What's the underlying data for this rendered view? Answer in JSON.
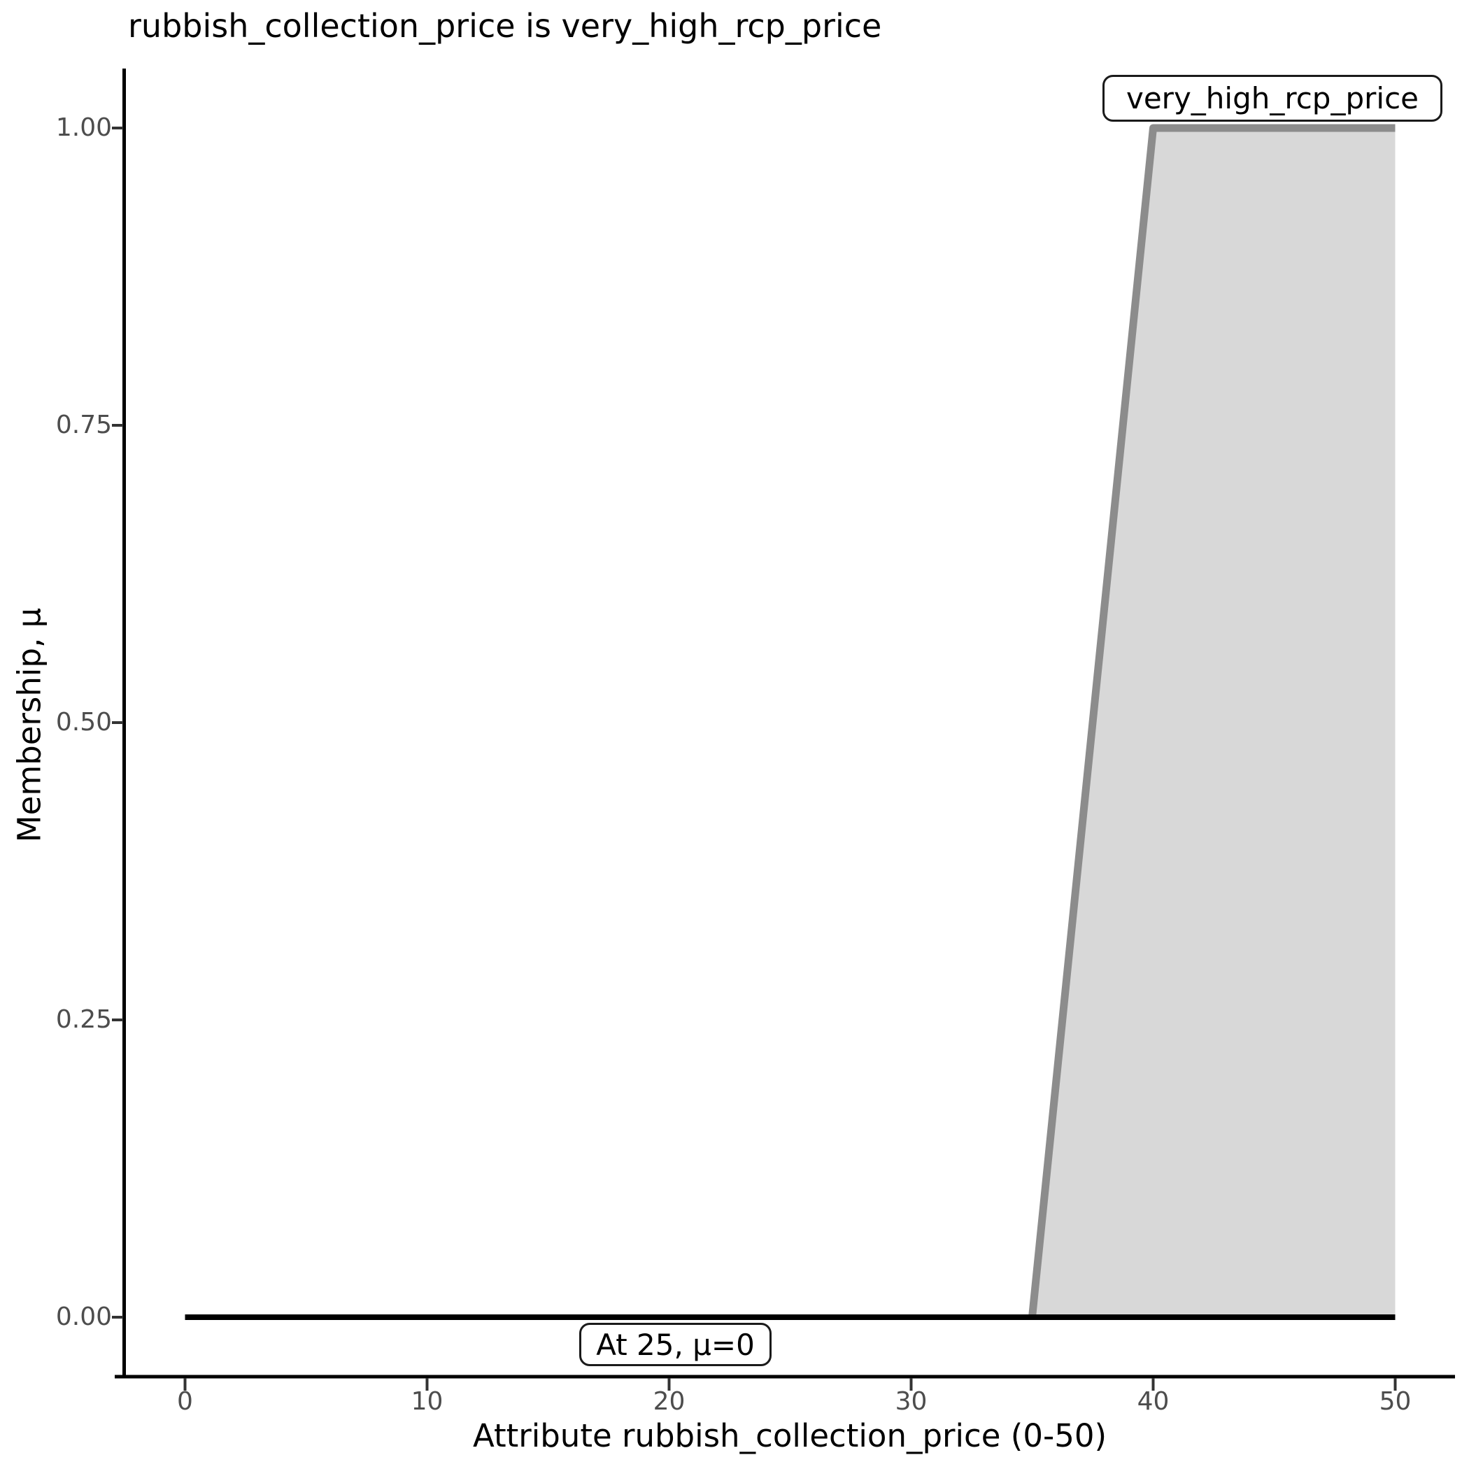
{
  "chart_data": {
    "type": "area",
    "title": "rubbish_collection_price is very_high_rcp_price",
    "xlabel": "Attribute rubbish_collection_price (0-50)",
    "ylabel": "Membership, μ",
    "xlim": [
      0,
      50
    ],
    "ylim": [
      0,
      1
    ],
    "x_ticks": [
      0,
      10,
      20,
      30,
      40,
      50
    ],
    "y_ticks": [
      0.0,
      0.25,
      0.5,
      0.75,
      1.0
    ],
    "y_tick_labels": [
      "0.00",
      "0.25",
      "0.50",
      "0.75",
      "1.00"
    ],
    "grid": "off",
    "series": [
      {
        "name": "very_high_rcp_price",
        "points": [
          [
            35,
            0
          ],
          [
            40,
            1
          ],
          [
            50,
            1
          ]
        ],
        "fill_polygon": [
          [
            35,
            0
          ],
          [
            40,
            1
          ],
          [
            50,
            1
          ],
          [
            50,
            0
          ]
        ],
        "line_color": "#8c8c8c",
        "fill_color": "#d8d8d8"
      }
    ],
    "baseline": {
      "label": "evaluation at x=25 gives μ=0",
      "y": 0,
      "x_from": 0,
      "x_to": 50,
      "color": "#000000"
    },
    "annotations": [
      {
        "text": "very_high_rcp_price"
      },
      {
        "text": "At 25, μ=0"
      }
    ],
    "colors": {
      "axis_line": "#000000",
      "tick_mark": "#333333",
      "tick_label": "#4d4d4d",
      "membership_line": "#8c8c8c",
      "membership_fill": "#d8d8d8",
      "baseline": "#000000",
      "annotation_border": "#1a1a1a",
      "annotation_bg": "#ffffff"
    }
  }
}
